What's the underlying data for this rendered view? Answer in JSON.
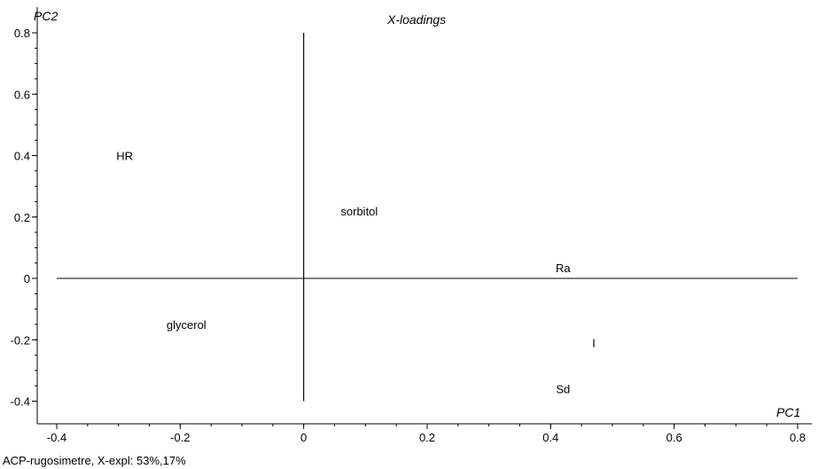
{
  "chart_data": {
    "type": "scatter",
    "title": "X-loadings",
    "xlabel": "PC1",
    "ylabel": "PC2",
    "caption": "ACP-rugosimetre, X-expl: 53%,17%",
    "xlim": [
      -0.42,
      0.82
    ],
    "ylim": [
      -0.45,
      0.85
    ],
    "xticks": [
      -0.4,
      -0.2,
      0,
      0.2,
      0.4,
      0.6,
      0.8
    ],
    "yticks": [
      -0.4,
      -0.2,
      0,
      0.2,
      0.4,
      0.6,
      0.8
    ],
    "xtick_labels": [
      "-0.4",
      "-0.2",
      "0",
      "0.2",
      "0.4",
      "0.6",
      "0.8"
    ],
    "ytick_labels": [
      "-0.4",
      "-0.2",
      "0",
      "0.2",
      "0.4",
      "0.6",
      "0.8"
    ],
    "grid": false,
    "points": [
      {
        "label": "HR",
        "x": -0.29,
        "y": 0.4
      },
      {
        "label": "sorbitol",
        "x": 0.09,
        "y": 0.22
      },
      {
        "label": "Ra",
        "x": 0.42,
        "y": 0.035
      },
      {
        "label": "glycerol",
        "x": -0.19,
        "y": -0.15
      },
      {
        "label": "I",
        "x": 0.47,
        "y": -0.21
      },
      {
        "label": "Sd",
        "x": 0.42,
        "y": -0.36
      }
    ],
    "reference_lines": {
      "horizontal": {
        "y": 0,
        "x_from": -0.4,
        "x_to": 0.8
      },
      "vertical": {
        "x": 0,
        "y_from": -0.4,
        "y_to": 0.8
      }
    }
  }
}
